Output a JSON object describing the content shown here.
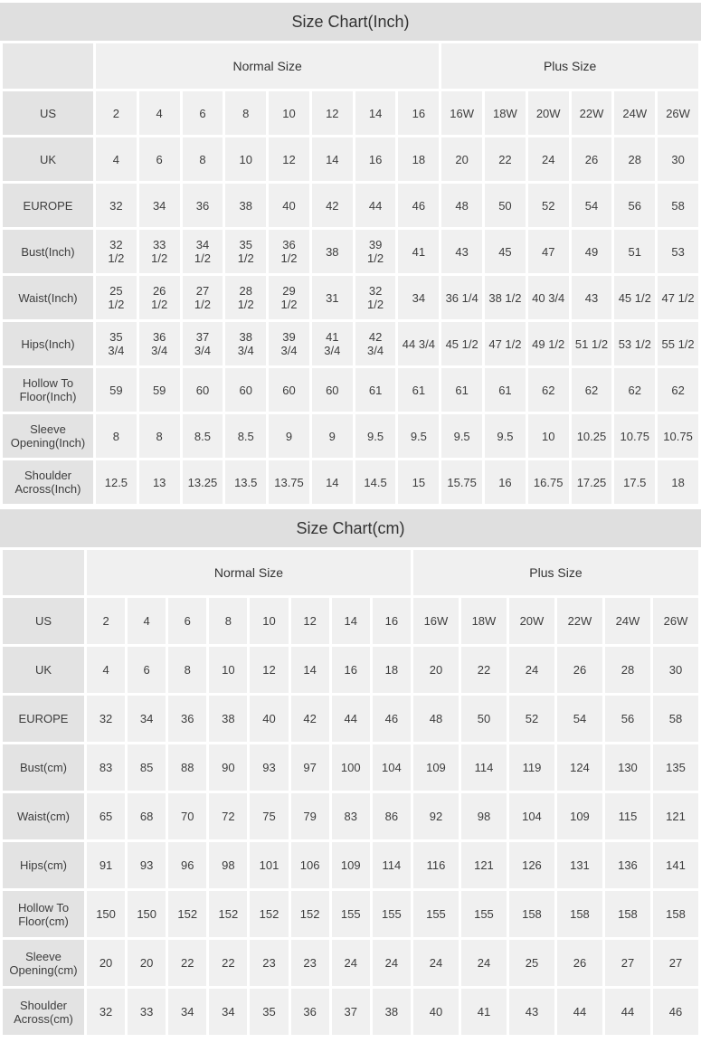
{
  "colors": {
    "title_bar_bg": "#dfdfdf",
    "data_cell_bg": "#f0f0f0",
    "label_cell_bg": "#e3e3e3",
    "text": "#3d3d3d"
  },
  "chart_data": [
    {
      "type": "table",
      "title": "Size Chart(Inch)",
      "column_groups": [
        {
          "label": "Normal Size",
          "span": 8
        },
        {
          "label": "Plus Size",
          "span": 6
        }
      ],
      "rows": [
        {
          "key": "us",
          "label": "US",
          "values": [
            "2",
            "4",
            "6",
            "8",
            "10",
            "12",
            "14",
            "16",
            "16W",
            "18W",
            "20W",
            "22W",
            "24W",
            "26W"
          ]
        },
        {
          "key": "uk",
          "label": "UK",
          "values": [
            "4",
            "6",
            "8",
            "10",
            "12",
            "14",
            "16",
            "18",
            "20",
            "22",
            "24",
            "26",
            "28",
            "30"
          ]
        },
        {
          "key": "europe",
          "label": "EUROPE",
          "values": [
            "32",
            "34",
            "36",
            "38",
            "40",
            "42",
            "44",
            "46",
            "48",
            "50",
            "52",
            "54",
            "56",
            "58"
          ]
        },
        {
          "key": "bust",
          "label": "Bust(Inch)",
          "values": [
            "32\n1/2",
            "33\n1/2",
            "34\n1/2",
            "35\n1/2",
            "36\n1/2",
            "38",
            "39\n1/2",
            "41",
            "43",
            "45",
            "47",
            "49",
            "51",
            "53"
          ]
        },
        {
          "key": "waist",
          "label": "Waist(Inch)",
          "values": [
            "25\n1/2",
            "26\n1/2",
            "27\n1/2",
            "28\n1/2",
            "29\n1/2",
            "31",
            "32\n1/2",
            "34",
            "36 1/4",
            "38 1/2",
            "40 3/4",
            "43",
            "45 1/2",
            "47 1/2"
          ]
        },
        {
          "key": "hips",
          "label": "Hips(Inch)",
          "values": [
            "35\n3/4",
            "36\n3/4",
            "37\n3/4",
            "38\n3/4",
            "39\n3/4",
            "41\n3/4",
            "42\n3/4",
            "44 3/4",
            "45 1/2",
            "47 1/2",
            "49 1/2",
            "51 1/2",
            "53 1/2",
            "55 1/2"
          ]
        },
        {
          "key": "hollow-to-floor",
          "label": "Hollow To\nFloor(Inch)",
          "values": [
            "59",
            "59",
            "60",
            "60",
            "60",
            "60",
            "61",
            "61",
            "61",
            "61",
            "62",
            "62",
            "62",
            "62"
          ]
        },
        {
          "key": "sleeve-opening",
          "label": "Sleeve\nOpening(Inch)",
          "values": [
            "8",
            "8",
            "8.5",
            "8.5",
            "9",
            "9",
            "9.5",
            "9.5",
            "9.5",
            "9.5",
            "10",
            "10.25",
            "10.75",
            "10.75"
          ]
        },
        {
          "key": "shoulder-across",
          "label": "Shoulder\nAcross(Inch)",
          "values": [
            "12.5",
            "13",
            "13.25",
            "13.5",
            "13.75",
            "14",
            "14.5",
            "15",
            "15.75",
            "16",
            "16.75",
            "17.25",
            "17.5",
            "18"
          ]
        }
      ]
    },
    {
      "type": "table",
      "title": "Size Chart(cm)",
      "column_groups": [
        {
          "label": "Normal Size",
          "span": 8
        },
        {
          "label": "Plus Size",
          "span": 6
        }
      ],
      "rows": [
        {
          "key": "us",
          "label": "US",
          "values": [
            "2",
            "4",
            "6",
            "8",
            "10",
            "12",
            "14",
            "16",
            "16W",
            "18W",
            "20W",
            "22W",
            "24W",
            "26W"
          ]
        },
        {
          "key": "uk",
          "label": "UK",
          "values": [
            "4",
            "6",
            "8",
            "10",
            "12",
            "14",
            "16",
            "18",
            "20",
            "22",
            "24",
            "26",
            "28",
            "30"
          ]
        },
        {
          "key": "europe",
          "label": "EUROPE",
          "values": [
            "32",
            "34",
            "36",
            "38",
            "40",
            "42",
            "44",
            "46",
            "48",
            "50",
            "52",
            "54",
            "56",
            "58"
          ]
        },
        {
          "key": "bust",
          "label": "Bust(cm)",
          "values": [
            "83",
            "85",
            "88",
            "90",
            "93",
            "97",
            "100",
            "104",
            "109",
            "114",
            "119",
            "124",
            "130",
            "135"
          ]
        },
        {
          "key": "waist",
          "label": "Waist(cm)",
          "values": [
            "65",
            "68",
            "70",
            "72",
            "75",
            "79",
            "83",
            "86",
            "92",
            "98",
            "104",
            "109",
            "115",
            "121"
          ]
        },
        {
          "key": "hips",
          "label": "Hips(cm)",
          "values": [
            "91",
            "93",
            "96",
            "98",
            "101",
            "106",
            "109",
            "114",
            "116",
            "121",
            "126",
            "131",
            "136",
            "141"
          ]
        },
        {
          "key": "hollow-to-floor",
          "label": "Hollow To\nFloor(cm)",
          "values": [
            "150",
            "150",
            "152",
            "152",
            "152",
            "152",
            "155",
            "155",
            "155",
            "155",
            "158",
            "158",
            "158",
            "158"
          ]
        },
        {
          "key": "sleeve-opening",
          "label": "Sleeve\nOpening(cm)",
          "values": [
            "20",
            "20",
            "22",
            "22",
            "23",
            "23",
            "24",
            "24",
            "24",
            "24",
            "25",
            "26",
            "27",
            "27"
          ]
        },
        {
          "key": "shoulder-across",
          "label": "Shoulder\nAcross(cm)",
          "values": [
            "32",
            "33",
            "34",
            "34",
            "35",
            "36",
            "37",
            "38",
            "40",
            "41",
            "43",
            "44",
            "44",
            "46"
          ]
        }
      ]
    }
  ]
}
